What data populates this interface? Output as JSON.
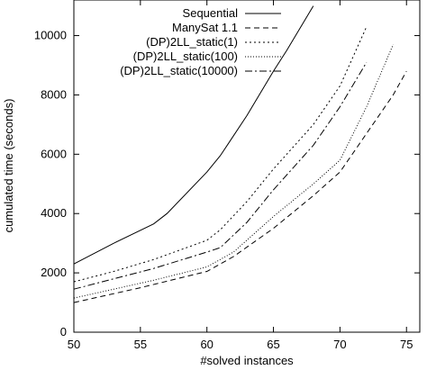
{
  "chart_data": {
    "type": "line",
    "title": "",
    "xlabel": "#solved instances",
    "ylabel": "cumulated time (seconds)",
    "xlim": [
      50,
      76
    ],
    "ylim": [
      0,
      11200
    ],
    "x_ticks": [
      50,
      55,
      60,
      65,
      70,
      75
    ],
    "y_ticks": [
      0,
      2000,
      4000,
      6000,
      8000,
      10000
    ],
    "grid": false,
    "legend_position": "top-right",
    "series": [
      {
        "name": "Sequential",
        "style": "solid",
        "points": [
          [
            50,
            2300
          ],
          [
            53,
            3000
          ],
          [
            56,
            3650
          ],
          [
            57,
            4000
          ],
          [
            60,
            5400
          ],
          [
            61,
            5950
          ],
          [
            63,
            7300
          ],
          [
            65,
            8800
          ],
          [
            66,
            9500
          ],
          [
            68,
            11000
          ]
        ]
      },
      {
        "name": "ManySat 1.1",
        "style": "dashed",
        "points": [
          [
            50,
            1000
          ],
          [
            52,
            1200
          ],
          [
            55,
            1500
          ],
          [
            60,
            2050
          ],
          [
            62,
            2550
          ],
          [
            65,
            3500
          ],
          [
            68,
            4600
          ],
          [
            70,
            5400
          ],
          [
            72,
            6700
          ],
          [
            74,
            8000
          ],
          [
            75,
            8800
          ]
        ]
      },
      {
        "name": "(DP)2LL_static(1)",
        "style": "dotted",
        "points": [
          [
            50,
            1700
          ],
          [
            53,
            2050
          ],
          [
            56,
            2450
          ],
          [
            60,
            3100
          ],
          [
            61,
            3450
          ],
          [
            63,
            4400
          ],
          [
            65,
            5500
          ],
          [
            68,
            7000
          ],
          [
            70,
            8300
          ],
          [
            72,
            10300
          ]
        ]
      },
      {
        "name": "(DP)2LL_static(100)",
        "style": "fine-dotted",
        "points": [
          [
            50,
            1150
          ],
          [
            53,
            1450
          ],
          [
            56,
            1750
          ],
          [
            60,
            2200
          ],
          [
            62,
            2700
          ],
          [
            65,
            3900
          ],
          [
            68,
            5000
          ],
          [
            70,
            5800
          ],
          [
            72,
            7600
          ],
          [
            74,
            9700
          ]
        ]
      },
      {
        "name": "(DP)2LL_static(10000)",
        "style": "dash-dot",
        "points": [
          [
            50,
            1450
          ],
          [
            53,
            1800
          ],
          [
            56,
            2150
          ],
          [
            60,
            2700
          ],
          [
            61,
            2850
          ],
          [
            63,
            3700
          ],
          [
            65,
            4800
          ],
          [
            68,
            6300
          ],
          [
            70,
            7600
          ],
          [
            72,
            9100
          ]
        ]
      }
    ]
  }
}
